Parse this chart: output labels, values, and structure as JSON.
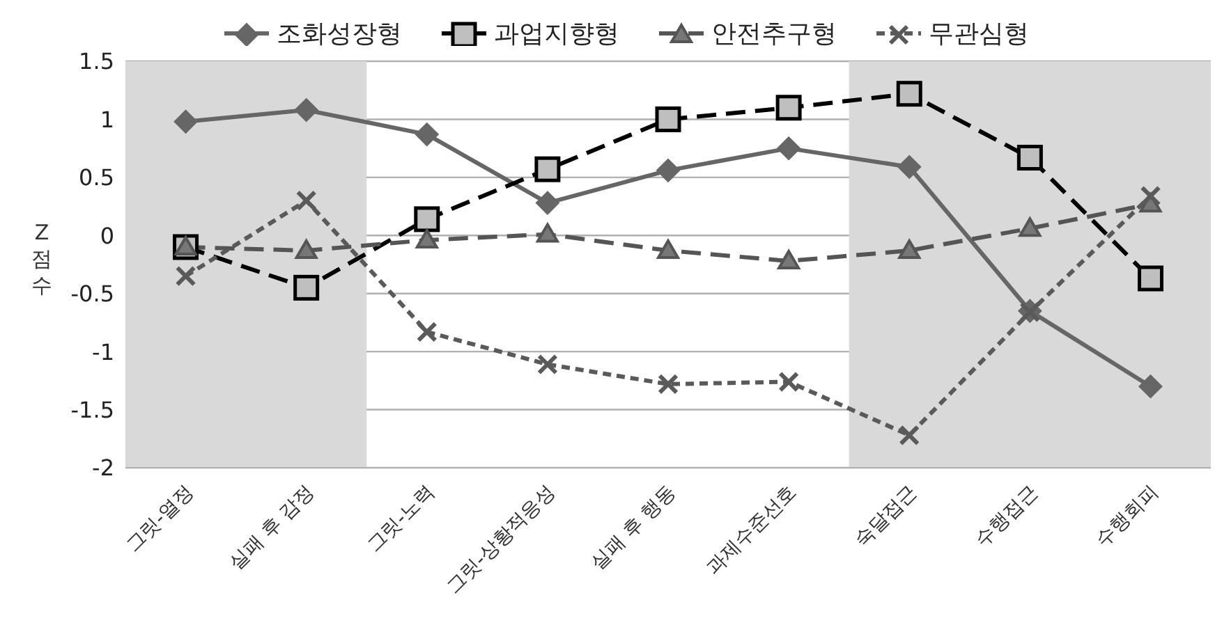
{
  "chart_data": {
    "type": "line",
    "ylabel": "Z 점수",
    "categories": [
      "그릿-열정",
      "실패 후 감정",
      "그릿-노력",
      "그릿-상황적응성",
      "실패 후 행동",
      "과제수준선호",
      "숙달접근",
      "수행접근",
      "수행회피"
    ],
    "series": [
      {
        "name": "조화성장형",
        "color": "#666666",
        "marker": "diamond",
        "line_style": "solid",
        "values": [
          0.98,
          1.08,
          0.87,
          0.28,
          0.56,
          0.75,
          0.59,
          -0.65,
          -1.3
        ]
      },
      {
        "name": "과업지향형",
        "color": "#000000",
        "marker": "square",
        "line_style": "dashed",
        "values": [
          -0.1,
          -0.45,
          0.14,
          0.57,
          1.0,
          1.1,
          1.22,
          0.67,
          -0.37
        ]
      },
      {
        "name": "안전추구형",
        "color": "#555555",
        "marker": "triangle",
        "line_style": "dashed",
        "values": [
          -0.1,
          -0.13,
          -0.04,
          0.01,
          -0.13,
          -0.22,
          -0.13,
          0.06,
          0.27
        ]
      },
      {
        "name": "무관심형",
        "color": "#5a5a5a",
        "marker": "cross",
        "line_style": "dotted",
        "values": [
          -0.35,
          0.3,
          -0.83,
          -1.11,
          -1.28,
          -1.26,
          -1.72,
          -0.66,
          0.34
        ]
      }
    ],
    "ylim": [
      -2,
      1.5
    ],
    "yticks": [
      -2,
      -1.5,
      -1,
      -0.5,
      0,
      0.5,
      1,
      1.5
    ],
    "grid": "y",
    "legend": "top",
    "bands": [
      {
        "axis": "x",
        "from": "그릿-열정",
        "to": "실패 후 감정",
        "color": "#d9d9d9"
      },
      {
        "axis": "x",
        "from": "숙달접근",
        "to": "수행회피",
        "color": "#d9d9d9"
      }
    ]
  }
}
